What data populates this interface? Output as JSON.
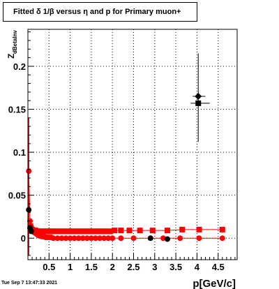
{
  "title": "Fitted δ 1/β versus η and p for Primary muon+",
  "timestamp": "Tue Sep  7 13:47:33 2021",
  "colors": {
    "series_a": "#ff0000",
    "series_b": "#000000",
    "grid": "#000000",
    "frame": "#000000"
  },
  "chart_data": {
    "type": "scatter",
    "title": "Fitted δ 1/β versus η and p for Primary muon+",
    "xlabel": "p[GeV/c]",
    "ylabel": "Z",
    "ylabel_sub": "dBetaInv",
    "xlim": [
      0,
      4.95
    ],
    "ylim": [
      -0.025,
      0.243
    ],
    "x_ticks": [
      0.5,
      1,
      1.5,
      2,
      2.5,
      3,
      3.5,
      4,
      4.5
    ],
    "x_tick_labels": [
      "0.5",
      "1",
      "1.5",
      "2",
      "2.5",
      "3",
      "3.5",
      "4",
      "4.5"
    ],
    "y_ticks": [
      0,
      0.05,
      0.1,
      0.15,
      0.2
    ],
    "y_tick_labels": [
      "0",
      "0.05",
      "0.1",
      "0.15",
      "0.2"
    ],
    "grid": true,
    "series": [
      {
        "marker": "circle",
        "color": "#ff0000",
        "points": [
          [
            0.02,
            0.078
          ],
          [
            0.05,
            0.02
          ],
          [
            0.08,
            0.013
          ],
          [
            0.11,
            0.009
          ],
          [
            0.14,
            0.007
          ],
          [
            0.17,
            0.006
          ],
          [
            0.2,
            0.005
          ],
          [
            0.23,
            0.004
          ],
          [
            0.26,
            0.003
          ],
          [
            0.29,
            0.003
          ],
          [
            0.32,
            0.002
          ],
          [
            0.35,
            0.002
          ],
          [
            0.38,
            0.002
          ],
          [
            0.42,
            0.001
          ],
          [
            0.46,
            0.001
          ],
          [
            0.5,
            0.001
          ],
          [
            0.55,
            0.001
          ],
          [
            0.6,
            0.0
          ],
          [
            0.7,
            0.0
          ],
          [
            0.8,
            0.0
          ],
          [
            0.9,
            0.0
          ],
          [
            1.0,
            0.0
          ],
          [
            1.1,
            0.0
          ],
          [
            1.2,
            0.0
          ],
          [
            1.3,
            0.0
          ],
          [
            1.4,
            0.0
          ],
          [
            1.5,
            0.0
          ],
          [
            1.6,
            0.0
          ],
          [
            1.7,
            0.0
          ],
          [
            1.8,
            0.0
          ],
          [
            1.9,
            0.0
          ],
          [
            2.0,
            0.0
          ],
          [
            2.2,
            0.0
          ],
          [
            2.5,
            0.0
          ],
          [
            2.9,
            0.0
          ],
          [
            3.2,
            0.0
          ],
          [
            3.6,
            0.0
          ],
          [
            4.05,
            0.0
          ],
          [
            4.6,
            0.0
          ]
        ]
      },
      {
        "marker": "square",
        "color": "#ff0000",
        "points": [
          [
            0.06,
            0.014
          ],
          [
            0.1,
            0.01
          ],
          [
            0.14,
            0.009
          ],
          [
            0.18,
            0.009
          ],
          [
            0.22,
            0.008
          ],
          [
            0.26,
            0.008
          ],
          [
            0.3,
            0.008
          ],
          [
            0.34,
            0.008
          ],
          [
            0.38,
            0.008
          ],
          [
            0.42,
            0.008
          ],
          [
            0.46,
            0.008
          ],
          [
            0.5,
            0.008
          ],
          [
            0.55,
            0.008
          ],
          [
            0.6,
            0.008
          ],
          [
            0.65,
            0.008
          ],
          [
            0.7,
            0.008
          ],
          [
            0.75,
            0.008
          ],
          [
            0.8,
            0.008
          ],
          [
            0.85,
            0.008
          ],
          [
            0.9,
            0.008
          ],
          [
            0.95,
            0.008
          ],
          [
            1.0,
            0.008
          ],
          [
            1.05,
            0.008
          ],
          [
            1.1,
            0.008
          ],
          [
            1.15,
            0.008
          ],
          [
            1.2,
            0.008
          ],
          [
            1.25,
            0.008
          ],
          [
            1.3,
            0.008
          ],
          [
            1.35,
            0.008
          ],
          [
            1.4,
            0.008
          ],
          [
            1.45,
            0.008
          ],
          [
            1.5,
            0.008
          ],
          [
            1.55,
            0.008
          ],
          [
            1.6,
            0.008
          ],
          [
            1.65,
            0.008
          ],
          [
            1.7,
            0.008
          ],
          [
            1.75,
            0.008
          ],
          [
            1.8,
            0.008
          ],
          [
            1.85,
            0.008
          ],
          [
            1.9,
            0.008
          ],
          [
            1.95,
            0.008
          ],
          [
            2.05,
            0.009
          ],
          [
            2.2,
            0.009
          ],
          [
            2.4,
            0.009
          ],
          [
            2.65,
            0.009
          ],
          [
            2.95,
            0.009
          ],
          [
            3.3,
            0.009
          ],
          [
            3.65,
            0.01
          ],
          [
            4.05,
            0.01
          ],
          [
            4.6,
            0.01
          ]
        ]
      },
      {
        "marker": "circle",
        "color": "#000000",
        "points": [
          [
            0.02,
            0.033
          ],
          [
            0.05,
            0.012
          ],
          [
            0.08,
            0.008
          ],
          [
            2.9,
            0.0
          ],
          [
            3.3,
            -0.001
          ],
          [
            4.03,
            0.165
          ]
        ]
      },
      {
        "marker": "square",
        "color": "#000000",
        "points": [
          [
            4.03,
            0.157
          ]
        ]
      }
    ]
  }
}
